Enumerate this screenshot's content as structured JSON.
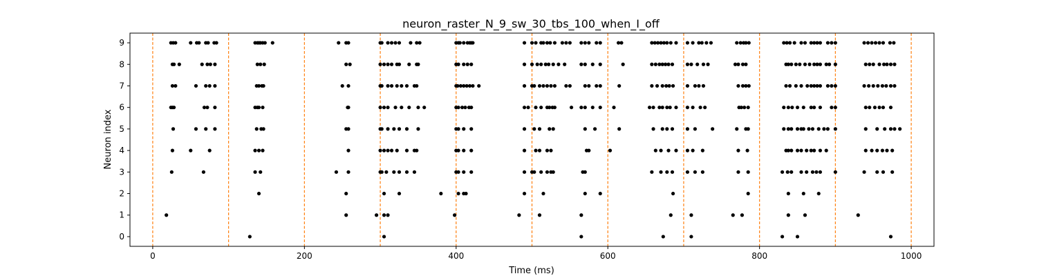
{
  "chart_data": {
    "type": "scatter",
    "title": "neuron_raster_N_9_sw_30_tbs_100_when_I_off",
    "xlabel": "Time (ms)",
    "ylabel": "Neuron index",
    "xlim": [
      -30,
      1030
    ],
    "ylim": [
      -0.45,
      9.45
    ],
    "xticks": [
      0,
      200,
      400,
      600,
      800,
      1000
    ],
    "yticks": [
      0,
      1,
      2,
      3,
      4,
      5,
      6,
      7,
      8,
      9
    ],
    "grid": false,
    "legend": "none",
    "marker_color": "#000000",
    "vlines": {
      "x": [
        0,
        100,
        200,
        300,
        400,
        500,
        600,
        700,
        800,
        900,
        1000
      ],
      "color": "#ff7f0e",
      "style": "dashed"
    },
    "spikes": [
      {
        "neuron": 9,
        "times": [
          24,
          27,
          30,
          50,
          58,
          61,
          70,
          73,
          81,
          84,
          135,
          138,
          140,
          142,
          145,
          148,
          158,
          245,
          255,
          258,
          300,
          302,
          310,
          315,
          320,
          325,
          340,
          348,
          352,
          400,
          403,
          405,
          410,
          415,
          418,
          420,
          422,
          490,
          500,
          505,
          512,
          515,
          520,
          524,
          530,
          540,
          545,
          550,
          565,
          570,
          575,
          585,
          590,
          614,
          618,
          658,
          662,
          666,
          670,
          674,
          678,
          683,
          690,
          705,
          712,
          720,
          724,
          730,
          736,
          770,
          775,
          779,
          782,
          786,
          832,
          836,
          840,
          846,
          855,
          860,
          868,
          872,
          876,
          880,
          890,
          895,
          900,
          938,
          943,
          948,
          953,
          958,
          963,
          972,
          977
        ]
      },
      {
        "neuron": 8,
        "times": [
          26,
          28,
          35,
          65,
          72,
          76,
          82,
          138,
          142,
          147,
          255,
          260,
          300,
          305,
          310,
          315,
          322,
          325,
          338,
          348,
          350,
          400,
          403,
          410,
          415,
          420,
          490,
          500,
          507,
          512,
          518,
          522,
          528,
          535,
          543,
          565,
          570,
          580,
          590,
          620,
          658,
          663,
          668,
          672,
          676,
          680,
          685,
          705,
          710,
          718,
          726,
          732,
          768,
          772,
          778,
          782,
          835,
          838,
          842,
          848,
          853,
          860,
          866,
          872,
          876,
          880,
          888,
          892,
          900,
          940,
          945,
          950,
          958,
          964,
          968,
          973,
          978
        ]
      },
      {
        "neuron": 7,
        "times": [
          26,
          30,
          57,
          70,
          75,
          82,
          137,
          140,
          144,
          146,
          250,
          258,
          300,
          302,
          310,
          315,
          322,
          328,
          335,
          345,
          348,
          400,
          402,
          406,
          410,
          414,
          418,
          422,
          430,
          490,
          500,
          503,
          510,
          515,
          520,
          525,
          530,
          545,
          550,
          570,
          575,
          585,
          590,
          615,
          658,
          665,
          672,
          677,
          681,
          686,
          705,
          715,
          720,
          726,
          772,
          778,
          782,
          786,
          835,
          840,
          848,
          855,
          863,
          868,
          872,
          876,
          880,
          890,
          895,
          900,
          938,
          944,
          950,
          956,
          962,
          967,
          973,
          978
        ]
      },
      {
        "neuron": 6,
        "times": [
          24,
          26,
          28,
          68,
          72,
          82,
          135,
          138,
          140,
          145,
          257,
          258,
          300,
          305,
          310,
          320,
          328,
          338,
          350,
          358,
          400,
          403,
          408,
          412,
          417,
          420,
          490,
          495,
          505,
          512,
          520,
          523,
          527,
          530,
          552,
          565,
          570,
          580,
          590,
          608,
          655,
          660,
          668,
          672,
          678,
          682,
          690,
          705,
          712,
          722,
          728,
          773,
          776,
          780,
          785,
          832,
          838,
          843,
          850,
          858,
          868,
          872,
          880,
          895,
          900,
          940,
          945,
          952,
          958,
          963,
          973
        ]
      },
      {
        "neuron": 5,
        "times": [
          27,
          57,
          70,
          82,
          137,
          143,
          146,
          255,
          258,
          300,
          302,
          310,
          318,
          325,
          335,
          350,
          400,
          403,
          410,
          420,
          490,
          503,
          510,
          523,
          528,
          570,
          583,
          615,
          660,
          672,
          678,
          685,
          705,
          715,
          738,
          770,
          782,
          785,
          832,
          838,
          842,
          850,
          855,
          858,
          865,
          870,
          878,
          885,
          890,
          900,
          940,
          955,
          965,
          973,
          978,
          985
        ]
      },
      {
        "neuron": 4,
        "times": [
          26,
          50,
          75,
          135,
          140,
          145,
          258,
          300,
          305,
          310,
          315,
          322,
          335,
          345,
          348,
          400,
          403,
          410,
          420,
          490,
          505,
          510,
          520,
          525,
          572,
          575,
          603,
          663,
          670,
          680,
          690,
          705,
          712,
          725,
          772,
          784,
          835,
          838,
          842,
          850,
          855,
          862,
          868,
          872,
          880,
          888,
          940,
          948,
          955,
          962,
          968,
          975
        ]
      },
      {
        "neuron": 3,
        "times": [
          25,
          67,
          135,
          142,
          242,
          258,
          300,
          302,
          308,
          318,
          325,
          335,
          345,
          400,
          403,
          410,
          420,
          490,
          500,
          503,
          512,
          520,
          525,
          528,
          567,
          570,
          658,
          670,
          678,
          685,
          705,
          715,
          725,
          772,
          785,
          830,
          837,
          842,
          855,
          862,
          870,
          875,
          880,
          900,
          938,
          955,
          963,
          975
        ]
      },
      {
        "neuron": 2,
        "times": [
          140,
          255,
          305,
          325,
          380,
          403,
          410,
          413,
          490,
          515,
          570,
          590,
          686,
          785,
          838,
          858,
          878
        ]
      },
      {
        "neuron": 1,
        "times": [
          18,
          255,
          295,
          305,
          310,
          398,
          483,
          510,
          565,
          683,
          710,
          765,
          777,
          838,
          860,
          930
        ]
      },
      {
        "neuron": 0,
        "times": [
          128,
          305,
          565,
          673,
          710,
          830,
          850,
          973
        ]
      }
    ]
  }
}
